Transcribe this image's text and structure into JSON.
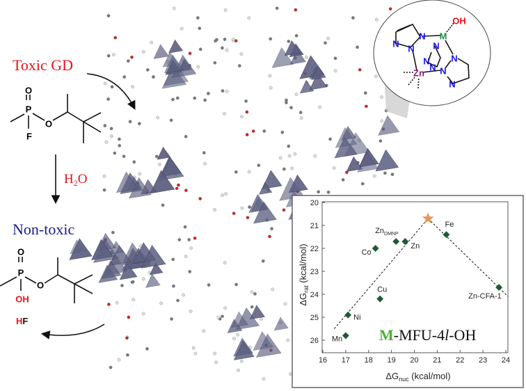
{
  "labels": {
    "toxic": "Toxic GD",
    "water_main": "H",
    "water_sub": "2",
    "water_end": "O",
    "nontoxic": "Non-toxic",
    "hf_h": "H",
    "hf_f": "F"
  },
  "molecule_gd": {
    "atoms": [
      "O",
      "P",
      "O",
      "F"
    ]
  },
  "molecule_product": {
    "atoms": [
      "O",
      "P",
      "O",
      "OH"
    ]
  },
  "inset_structure": {
    "atoms": [
      "N",
      "N",
      "N",
      "N",
      "N",
      "N",
      "N",
      "N",
      "N",
      "M",
      "OH",
      "Zn"
    ]
  },
  "colors": {
    "toxic": "#e8141c",
    "nontoxic": "#1a1a8c",
    "metal_label": "#4caf3a",
    "marker": "#1e5b34",
    "star": "#e8955a",
    "polyhedra": "#5c5f80"
  },
  "chart_data": {
    "type": "scatter",
    "title": "M-MFU-4l-OH",
    "title_parts": {
      "m": "M",
      "rest1": "-MFU-4",
      "italic": "l",
      "rest2": "-OH"
    },
    "xlabel": {
      "main": "ΔG",
      "sub": "nuc",
      "unit": " (kcal/mol)"
    },
    "ylabel": {
      "main": "ΔG",
      "sub": "rat",
      "unit": " (kcal/mol)"
    },
    "xlim": [
      16,
      24.3
    ],
    "ylim": [
      20,
      26.5
    ],
    "y_inverted": true,
    "xticks": [
      "16",
      "17",
      "18",
      "19",
      "20",
      "21",
      "22",
      "23",
      "24"
    ],
    "yticks": [
      "20",
      "21",
      "22",
      "23",
      "24",
      "25",
      "26"
    ],
    "points": [
      {
        "label": "Mn",
        "x": 17.0,
        "y": 25.8
      },
      {
        "label": "Ni",
        "x": 17.1,
        "y": 24.9
      },
      {
        "label": "Cu",
        "x": 18.5,
        "y": 24.2
      },
      {
        "label": "Co",
        "x": 18.3,
        "y": 22.0
      },
      {
        "label": "Zn",
        "sub": "DMNP",
        "x": 19.2,
        "y": 21.7
      },
      {
        "label": "Zn",
        "x": 19.6,
        "y": 21.7
      },
      {
        "label": "Fe",
        "x": 21.4,
        "y": 21.4
      },
      {
        "label": "Zn-CFA-1",
        "x": 23.7,
        "y": 23.7
      }
    ],
    "apex": {
      "x": 20.6,
      "y": 20.7
    },
    "trend_lines": [
      [
        [
          16.5,
          25.5
        ],
        [
          20.6,
          20.7
        ]
      ],
      [
        [
          20.6,
          20.7
        ],
        [
          24.1,
          24.1
        ]
      ]
    ]
  }
}
